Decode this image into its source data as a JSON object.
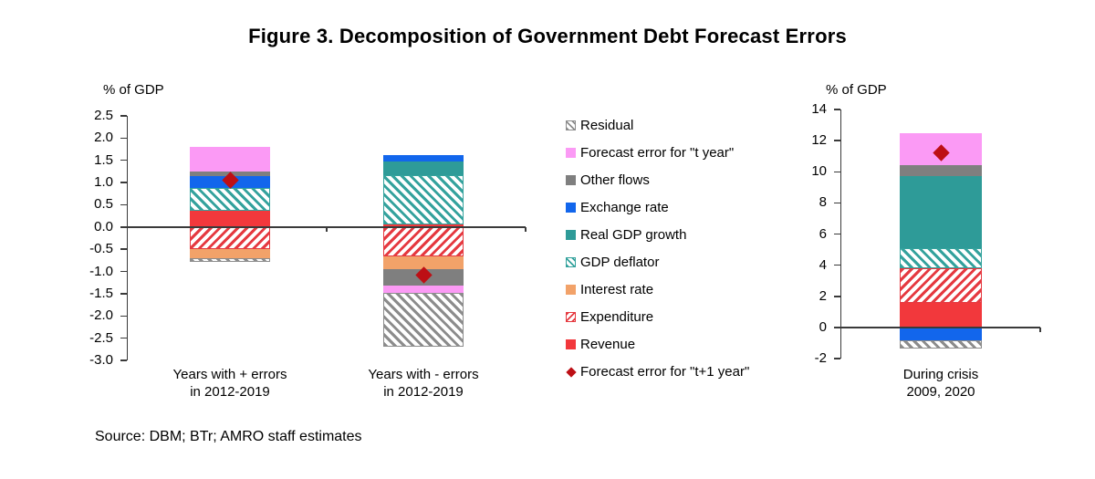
{
  "title": "Figure 3. Decomposition of Government Debt Forecast Errors",
  "source_note": "Source: DBM; BTr; AMRO staff estimates",
  "styles": {
    "Residual": {
      "pattern": "hatch",
      "angle": 45,
      "color": "#8c8c8c"
    },
    "Forecast error for \"t year\"": {
      "pattern": "solid",
      "color": "#fb9af5"
    },
    "Other flows": {
      "pattern": "solid",
      "color": "#7f7f7f"
    },
    "Exchange rate": {
      "pattern": "solid",
      "color": "#1266ec"
    },
    "Real GDP growth": {
      "pattern": "solid",
      "color": "#2e9b98"
    },
    "GDP deflator": {
      "pattern": "hatch",
      "angle": 45,
      "color": "#34a29d"
    },
    "Interest rate": {
      "pattern": "solid",
      "color": "#f2a269"
    },
    "Expenditure": {
      "pattern": "hatch",
      "angle": 135,
      "color": "#e53940"
    },
    "Revenue": {
      "pattern": "solid",
      "color": "#f2383c"
    },
    "Forecast error for \"t+1 year\"": {
      "pattern": "diamond",
      "color": "#bd0f15"
    }
  },
  "legend_order": [
    "Residual",
    "Forecast error for \"t year\"",
    "Other flows",
    "Exchange rate",
    "Real GDP growth",
    "GDP deflator",
    "Interest rate",
    "Expenditure",
    "Revenue",
    "Forecast error for \"t+1 year\""
  ],
  "chart_data": [
    {
      "type": "stacked-bar",
      "panel": "left",
      "ylabel": "% of GDP",
      "ylim": [
        -3.0,
        2.5
      ],
      "yticks": [
        "2.5",
        "2.0",
        "1.5",
        "1.0",
        "0.5",
        "0.0",
        "-0.5",
        "-1.0",
        "-1.5",
        "-2.0",
        "-2.5",
        "-3.0"
      ],
      "categories": [
        [
          "Years with + errors",
          "in 2012-2019"
        ],
        [
          "Years with - errors",
          "in 2012-2019"
        ]
      ],
      "series": [
        {
          "name": "Revenue",
          "values": [
            0.37,
            0.06
          ]
        },
        {
          "name": "Expenditure",
          "values": [
            -0.5,
            -0.66
          ]
        },
        {
          "name": "Interest rate",
          "values": [
            -0.2,
            -0.28
          ]
        },
        {
          "name": "GDP deflator",
          "values": [
            0.5,
            1.1
          ]
        },
        {
          "name": "Real GDP growth",
          "values": [
            0.0,
            0.32
          ]
        },
        {
          "name": "Exchange rate",
          "values": [
            0.28,
            0.13
          ]
        },
        {
          "name": "Other flows",
          "values": [
            0.1,
            -0.37
          ]
        },
        {
          "name": "Forecast error for \"t year\"",
          "values": [
            0.55,
            -0.18
          ]
        },
        {
          "name": "Residual",
          "values": [
            -0.08,
            -1.2
          ]
        }
      ],
      "marker_series": {
        "name": "Forecast error for \"t+1 year\"",
        "values": [
          1.05,
          -1.08
        ]
      }
    },
    {
      "type": "stacked-bar",
      "panel": "right",
      "ylabel": "% of GDP",
      "ylim": [
        -2,
        14
      ],
      "yticks": [
        "14",
        "12",
        "10",
        "8",
        "6",
        "4",
        "2",
        "0",
        "-2"
      ],
      "categories": [
        [
          "During crisis",
          "2009, 2020"
        ]
      ],
      "series": [
        {
          "name": "Revenue",
          "values": [
            1.55
          ]
        },
        {
          "name": "Expenditure",
          "values": [
            2.25
          ]
        },
        {
          "name": "Interest rate",
          "values": [
            0.0
          ]
        },
        {
          "name": "GDP deflator",
          "values": [
            1.3
          ]
        },
        {
          "name": "Real GDP growth",
          "values": [
            4.6
          ]
        },
        {
          "name": "Exchange rate",
          "values": [
            -0.85
          ]
        },
        {
          "name": "Other flows",
          "values": [
            0.7
          ]
        },
        {
          "name": "Forecast error for \"t year\"",
          "values": [
            2.1
          ]
        },
        {
          "name": "Residual",
          "values": [
            -0.5
          ]
        }
      ],
      "marker_series": {
        "name": "Forecast error for \"t+1 year\"",
        "values": [
          11.2
        ]
      }
    }
  ]
}
